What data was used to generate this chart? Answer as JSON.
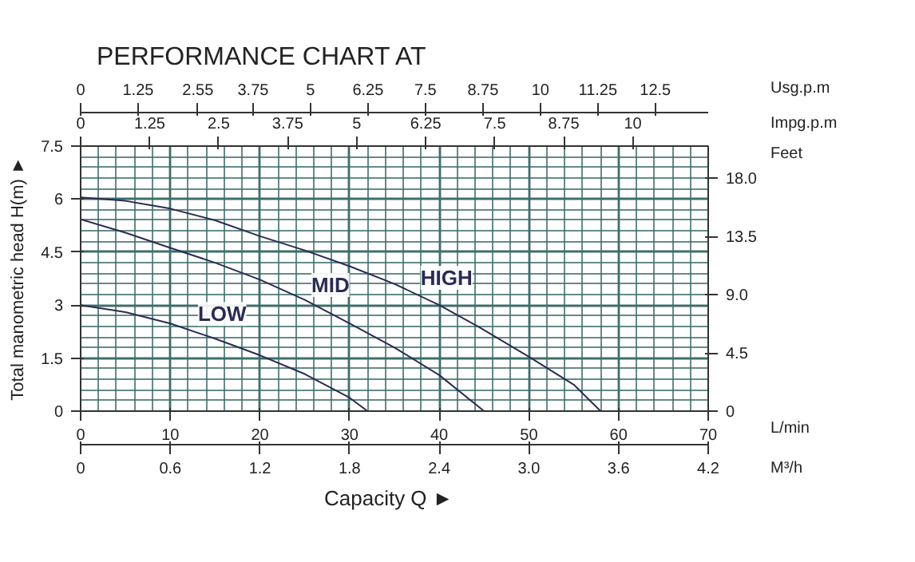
{
  "chart_data": {
    "type": "line",
    "title": "PERFORMANCE CHART AT",
    "xlabel": "L/min",
    "ylabel": "Total manometric head H(m) ►",
    "x2label": "Usg.p.m",
    "y2label": "Feet",
    "annotations": [
      "Capacity  Q  ►",
      "Impg.p.m",
      "0",
      "1.25",
      "2.5",
      "3.75",
      "5",
      "6.25",
      "7.5",
      "8.75",
      "10",
      "M³/h",
      "0",
      "0.6",
      "1.2",
      "1.8",
      "2.4",
      "3.0",
      "3.6",
      "4.2"
    ],
    "xlim": [
      0,
      70
    ],
    "xticks": [
      0,
      10,
      20,
      30,
      40,
      50,
      60,
      70
    ],
    "ylim": [
      0,
      7.5
    ],
    "yticks": [
      0,
      1.5,
      3,
      4.5,
      6,
      7.5
    ],
    "x2lim": [
      0,
      13.65
    ],
    "x2ticks": [
      0,
      1.25,
      2.55,
      3.75,
      5,
      6.25,
      7.5,
      8.75,
      10,
      11.25,
      12.5
    ],
    "y2lim": [
      0,
      20.5
    ],
    "y2ticks": [
      0,
      4.5,
      {
        "value": 9,
        "label": "9.0"
      },
      13.5,
      {
        "value": 18,
        "label": "18.0"
      }
    ],
    "grid": true,
    "marker": "none",
    "line_style": "solid",
    "series": [
      {
        "name": "LOW",
        "color": "#2b2b55",
        "x": [
          0,
          5,
          10,
          15,
          20,
          25,
          30,
          32
        ],
        "values": [
          3.0,
          2.8,
          2.48,
          2.05,
          1.58,
          1.05,
          0.38,
          0
        ]
      },
      {
        "name": "MID",
        "color": "#2b2b55",
        "x": [
          0,
          5,
          10,
          15,
          20,
          25,
          30,
          35,
          40,
          45
        ],
        "values": [
          5.43,
          5.05,
          4.62,
          4.2,
          3.72,
          3.15,
          2.48,
          1.8,
          1.02,
          0
        ]
      },
      {
        "name": "HIGH",
        "color": "#2b2b55",
        "x": [
          0,
          5,
          10,
          15,
          20,
          25,
          30,
          35,
          40,
          44.5,
          50,
          55,
          58
        ],
        "values": [
          6.05,
          5.95,
          5.73,
          5.4,
          4.95,
          4.55,
          4.1,
          3.6,
          3.0,
          2.37,
          1.54,
          0.75,
          0
        ]
      }
    ]
  }
}
